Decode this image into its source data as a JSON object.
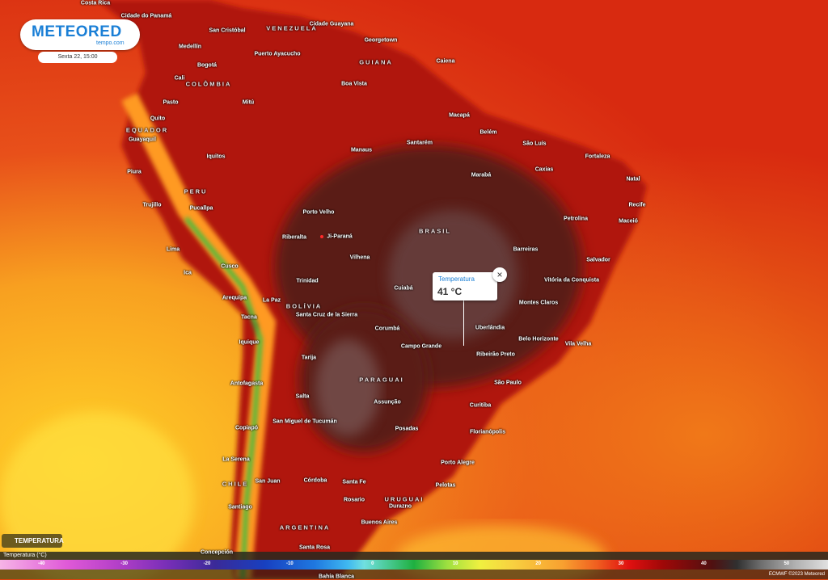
{
  "logo": {
    "brand": "METEORED",
    "sub": "tempo.com"
  },
  "date": "Sexta 22, 15:00",
  "tooltip": {
    "title": "Temperatura",
    "value": "41 °C"
  },
  "layer_button": "TEMPERATURA",
  "legend": {
    "title": "Temperatura (°C)",
    "lim": [
      -45,
      55
    ],
    "ticks": [
      -40,
      -30,
      -20,
      -10,
      0,
      10,
      20,
      30,
      40,
      50
    ]
  },
  "credit": "ECMWF ©2023 Meteored",
  "countries": [
    "VENEZUELA",
    "GUIANA",
    "COLÔMBIA",
    "EQUADOR",
    "PERU",
    "BRASIL",
    "BOLÍVIA",
    "PARAGUAI",
    "URUGUAI",
    "ARGENTINA",
    "CHILE"
  ],
  "cities": [
    "Costa Rica",
    "Cidade do Panamá",
    "San Cristóbal",
    "Medellín",
    "Bogotá",
    "Cali",
    "Puerto Ayacucho",
    "Cidade Guayana",
    "Georgetown",
    "Caiena",
    "Boa Vista",
    "Mitú",
    "Pasto",
    "Quito",
    "Guayaquil",
    "Piura",
    "Iquitos",
    "Manaus",
    "Santarém",
    "Macapá",
    "Belém",
    "São Luís",
    "Fortaleza",
    "Caxias",
    "Marabá",
    "Natal",
    "Recife",
    "Maceió",
    "Petrolina",
    "Trujillo",
    "Pucallpa",
    "Porto Velho",
    "Riberalta",
    "Ji-Paraná",
    "Barreiras",
    "Salvador",
    "Vilhena",
    "Lima",
    "Cusco",
    "Ica",
    "Trinidad",
    "Cuiabá",
    "Vitória da Conquista",
    "Montes Claros",
    "Arequipa",
    "La Paz",
    "Santa Cruz de la Sierra",
    "Tacna",
    "Corumbá",
    "Uberlândia",
    "Belo Horizonte",
    "Vila Velha",
    "Iquique",
    "Campo Grande",
    "Ribeirão Preto",
    "Tarija",
    "São Paulo",
    "Antofagasta",
    "Salta",
    "Assunção",
    "Curitiba",
    "Copiapó",
    "San Miguel de Tucumán",
    "Posadas",
    "Florianópolis",
    "La Serena",
    "Porto Alegre",
    "San Juan",
    "Córdoba",
    "Santa Fe",
    "Pelotas",
    "Rosario",
    "Durazno",
    "Santiago",
    "Buenos Aires",
    "Concepción",
    "Santa Rosa",
    "Bahía Blanca"
  ]
}
